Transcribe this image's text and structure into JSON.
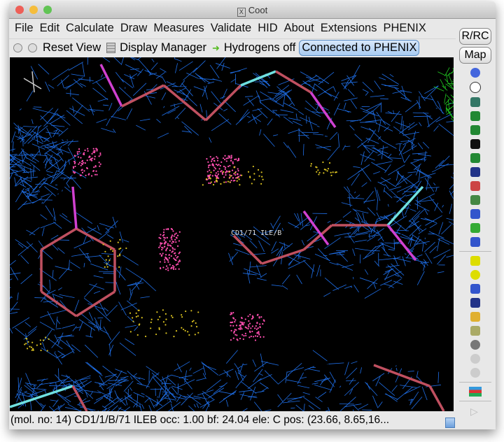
{
  "window": {
    "title": "Coot",
    "traffic_lights": {
      "close": "#ee5f57",
      "minimize": "#f5bd3c",
      "zoom": "#61c454"
    }
  },
  "menubar": [
    "File",
    "Edit",
    "Calculate",
    "Draw",
    "Measures",
    "Validate",
    "HID",
    "About",
    "Extensions",
    "PHENIX"
  ],
  "toolbar": {
    "reset_view": "Reset View",
    "display_manager": "Display Manager",
    "hydrogens": "Hydrogens off",
    "phenix_status": "Connected to PHENIX"
  },
  "sidebar": {
    "rrc": "R/RC",
    "map": "Map",
    "icons": [
      "refine-sphere-icon",
      "clock-regularize-icon",
      "rigid-body-icon",
      "real-space-refine-icon",
      "chain-refine-icon",
      "expand-arrow-icon",
      "rotamer-icon",
      "flip-peptide-icon",
      "side-chain-180-icon",
      "rotate-translate-icon",
      "torsion-icon",
      "sidechain-icon",
      "jed-flip-icon",
      "add-alt-conf-icon",
      "radioactive-icon",
      "add-atom-icon",
      "place-atom-icon",
      "add-terminal-icon",
      "mutate-icon",
      "delete-icon",
      "undo-icon",
      "redo-icon",
      "azerbaijan-flag-icon",
      "play-icon"
    ]
  },
  "view": {
    "atom_label": "CD1/71 ILE/B",
    "colors": {
      "map": "#1f6fe8",
      "map_green": "#22cc22",
      "bond_carbon": "#c05060",
      "bond_n": "#6fe0e0",
      "bond_o": "#d040d0",
      "dots_pink": "#ff4fb0",
      "dots_yellow": "#d8c020"
    }
  },
  "status": "(mol. no: 14)  CD1/1/B/71 ILEB occ:  1.00 bf: 24.04 ele:  C pos: (23.66, 8.65,16..."
}
